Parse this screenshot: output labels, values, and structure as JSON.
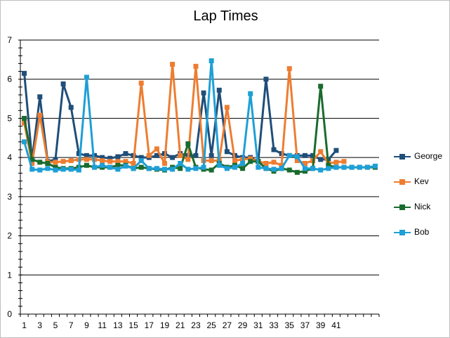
{
  "chart_data": {
    "type": "line",
    "title": "Lap Times",
    "xlabel": "",
    "ylabel": "",
    "ylim": [
      0,
      7
    ],
    "yticks": [
      0,
      1,
      2,
      3,
      4,
      5,
      6,
      7
    ],
    "xtick_labels": [
      "1",
      "3",
      "5",
      "7",
      "9",
      "11",
      "13",
      "15",
      "17",
      "19",
      "21",
      "23",
      "25",
      "27",
      "29",
      "31",
      "33",
      "35",
      "37",
      "39",
      "41"
    ],
    "x_count": 46,
    "grid": "horizontal",
    "legend_position": "right",
    "series": [
      {
        "name": "George",
        "color": "#1f4e79",
        "values": [
          6.15,
          3.95,
          5.55,
          3.9,
          3.95,
          5.88,
          5.28,
          4.1,
          4.05,
          4.05,
          4.0,
          3.98,
          4.02,
          4.1,
          4.05,
          4.0,
          4.0,
          4.05,
          4.1,
          4.0,
          4.1,
          4.05,
          4.05,
          5.65,
          4.05,
          5.72,
          4.15,
          4.05,
          4.0,
          4.0,
          3.9,
          6.0,
          4.2,
          4.1,
          4.05,
          4.05,
          4.05,
          4.05,
          3.95,
          3.95,
          4.18
        ]
      },
      {
        "name": "Kev",
        "color": "#ed7d31",
        "values": [
          4.88,
          3.85,
          5.08,
          3.88,
          3.88,
          3.9,
          3.92,
          3.95,
          3.95,
          3.95,
          3.92,
          3.9,
          3.9,
          3.9,
          3.85,
          5.9,
          4.05,
          4.22,
          3.85,
          6.38,
          4.05,
          3.95,
          6.33,
          3.92,
          3.92,
          3.92,
          5.28,
          3.92,
          3.95,
          3.97,
          3.9,
          3.85,
          3.88,
          3.8,
          6.27,
          3.92,
          3.85,
          3.92,
          4.15,
          3.85,
          3.88,
          3.9
        ]
      },
      {
        "name": "Nick",
        "color": "#1a6b2e",
        "values": [
          5.0,
          3.95,
          3.88,
          3.85,
          3.75,
          3.72,
          3.72,
          3.75,
          3.8,
          3.75,
          3.75,
          3.75,
          3.8,
          3.8,
          3.72,
          3.75,
          3.72,
          3.7,
          3.68,
          3.75,
          3.72,
          4.35,
          3.75,
          3.7,
          3.68,
          3.85,
          3.75,
          3.8,
          3.72,
          3.9,
          3.9,
          3.72,
          3.65,
          3.72,
          3.68,
          3.62,
          3.65,
          3.72,
          5.82,
          3.8,
          3.75,
          3.75,
          3.75,
          3.75,
          3.75,
          3.75
        ]
      },
      {
        "name": "Bob",
        "color": "#1e9fd6",
        "values": [
          4.4,
          3.7,
          3.68,
          3.72,
          3.68,
          3.7,
          3.7,
          3.68,
          6.05,
          3.75,
          3.8,
          3.75,
          3.7,
          3.78,
          3.72,
          3.92,
          3.72,
          3.72,
          3.7,
          3.7,
          3.85,
          3.7,
          3.72,
          3.75,
          6.47,
          3.8,
          3.72,
          3.75,
          3.85,
          5.63,
          3.75,
          3.72,
          3.7,
          3.72,
          4.05,
          4.02,
          3.72,
          3.72,
          3.68,
          3.72,
          3.75,
          3.75,
          3.75,
          3.75,
          3.75,
          3.78
        ]
      }
    ]
  }
}
